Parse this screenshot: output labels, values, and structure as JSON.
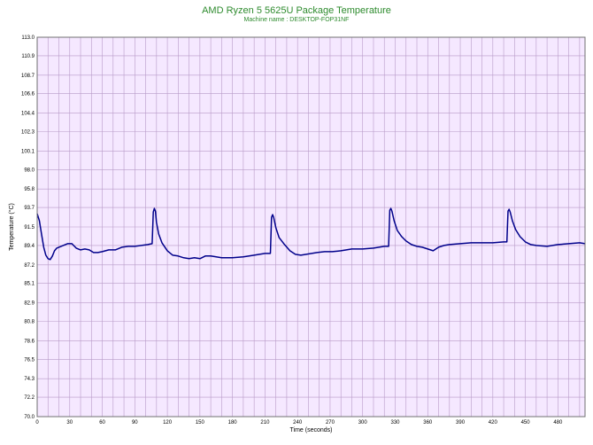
{
  "chart_data": {
    "type": "line",
    "title": "AMD Ryzen 5 5625U Package Temperature",
    "subtitle": "Machine name : DESKTOP-FOP31NF",
    "xlabel": "Time (seconds)",
    "ylabel": "Temperature (°C)",
    "xlim": [
      0,
      505
    ],
    "ylim": [
      70.0,
      113.0
    ],
    "x_ticks": [
      0,
      30,
      60,
      90,
      120,
      150,
      180,
      210,
      240,
      270,
      300,
      330,
      360,
      390,
      420,
      450,
      480
    ],
    "y_ticks": [
      70.0,
      72.2,
      74.3,
      76.5,
      78.6,
      80.8,
      82.9,
      85.1,
      87.2,
      89.4,
      91.5,
      93.7,
      95.8,
      98.0,
      100.1,
      102.3,
      104.4,
      106.6,
      108.7,
      110.9,
      113.0
    ],
    "grid": true,
    "colors": {
      "background": "#f5e8ff",
      "line": "#00008b",
      "grid": "#b89ac8",
      "title": "#2e8b2e"
    },
    "series": [
      {
        "x": [
          0,
          2,
          4,
          6,
          8,
          10,
          12,
          14,
          16,
          18,
          20,
          24,
          28,
          32,
          36,
          40,
          44,
          48,
          52,
          56,
          60,
          66,
          72,
          78,
          84,
          90,
          96,
          102,
          106,
          107,
          108,
          109,
          110,
          112,
          115,
          120,
          125,
          130,
          135,
          140,
          145,
          150,
          155,
          160,
          170,
          180,
          190,
          200,
          210,
          215,
          216,
          217,
          218,
          220,
          223,
          228,
          233,
          238,
          243,
          248,
          253,
          258,
          265,
          272,
          280,
          290,
          300,
          310,
          320,
          324,
          325,
          326,
          327,
          329,
          332,
          336,
          340,
          345,
          350,
          355,
          360,
          365,
          370,
          375,
          380,
          390,
          400,
          410,
          420,
          430,
          433,
          434,
          435,
          436,
          438,
          441,
          445,
          450,
          455,
          460,
          470,
          480,
          490,
          500,
          505
        ],
        "y": [
          93.0,
          92.2,
          90.7,
          89.2,
          88.3,
          87.9,
          87.8,
          88.2,
          88.8,
          89.1,
          89.2,
          89.4,
          89.6,
          89.6,
          89.1,
          88.9,
          89.0,
          88.9,
          88.6,
          88.6,
          88.7,
          88.9,
          88.9,
          89.2,
          89.3,
          89.3,
          89.4,
          89.5,
          89.6,
          93.2,
          93.6,
          93.3,
          92.0,
          90.7,
          89.7,
          88.8,
          88.3,
          88.2,
          88.0,
          87.9,
          88.0,
          87.9,
          88.2,
          88.2,
          88.0,
          88.0,
          88.1,
          88.3,
          88.5,
          88.5,
          92.6,
          92.9,
          92.6,
          91.4,
          90.3,
          89.5,
          88.8,
          88.4,
          88.3,
          88.4,
          88.5,
          88.6,
          88.7,
          88.7,
          88.8,
          89.0,
          89.0,
          89.1,
          89.3,
          89.3,
          93.4,
          93.6,
          93.3,
          92.2,
          91.1,
          90.4,
          89.9,
          89.5,
          89.3,
          89.2,
          89.0,
          88.8,
          89.2,
          89.4,
          89.5,
          89.6,
          89.7,
          89.7,
          89.7,
          89.8,
          89.8,
          93.3,
          93.5,
          93.2,
          92.2,
          91.2,
          90.4,
          89.8,
          89.5,
          89.4,
          89.3,
          89.5,
          89.6,
          89.7,
          89.6
        ]
      }
    ]
  }
}
